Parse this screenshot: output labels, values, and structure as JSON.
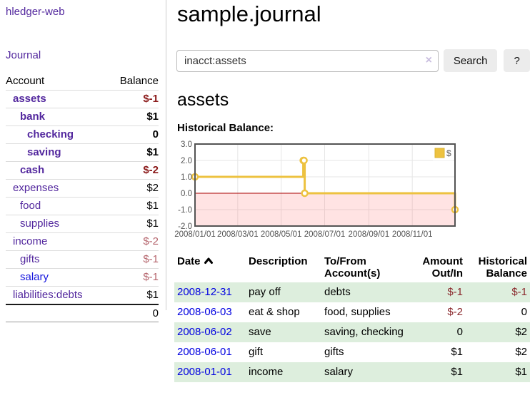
{
  "app": {
    "title": "hledger-web"
  },
  "sidebar": {
    "nav": [
      {
        "label": "Journal"
      }
    ],
    "accounts_table": {
      "headers": [
        "Account",
        "Balance"
      ],
      "rows": [
        {
          "name": "assets",
          "indent": 1,
          "bold": true,
          "balance": "$-1"
        },
        {
          "name": "bank",
          "indent": 2,
          "bold": true,
          "balance": "$1"
        },
        {
          "name": "checking",
          "indent": 3,
          "bold": true,
          "balance": "0"
        },
        {
          "name": "saving",
          "indent": 3,
          "bold": true,
          "balance": "$1"
        },
        {
          "name": "cash",
          "indent": 2,
          "bold": true,
          "balance": "$-2"
        },
        {
          "name": "expenses",
          "indent": 1,
          "bold": false,
          "balance": "$2"
        },
        {
          "name": "food",
          "indent": 2,
          "bold": false,
          "balance": "$1"
        },
        {
          "name": "supplies",
          "indent": 2,
          "bold": false,
          "balance": "$1"
        },
        {
          "name": "income",
          "indent": 1,
          "bold": false,
          "balance": "$-2"
        },
        {
          "name": "gifts",
          "indent": 2,
          "bold": false,
          "balance": "$-1"
        },
        {
          "name": "salary",
          "indent": 2,
          "bold": false,
          "balance": "$-1",
          "unvisited": true
        },
        {
          "name": "liabilities:debts",
          "indent": 1,
          "bold": false,
          "balance": "$1"
        }
      ],
      "total": "0"
    }
  },
  "header": {
    "title": "sample.journal"
  },
  "search": {
    "value": "inacct:assets",
    "clear_icon": "×",
    "button_label": "Search",
    "help_label": "?"
  },
  "account_page": {
    "title": "assets",
    "chart_label": "Historical Balance:"
  },
  "chart_data": {
    "type": "line",
    "title": "Historical Balance of assets",
    "step": true,
    "series": [
      {
        "name": "$",
        "color": "#edc240",
        "points": [
          {
            "date": "2008-01-01",
            "value": 1
          },
          {
            "date": "2008-06-01",
            "value": 2
          },
          {
            "date": "2008-06-02",
            "value": 2
          },
          {
            "date": "2008-06-03",
            "value": 0
          },
          {
            "date": "2008-12-31",
            "value": -1
          }
        ]
      }
    ],
    "xlim": [
      "2008-01-01",
      "2008-12-31"
    ],
    "ylim": [
      -2,
      3
    ],
    "y_ticks": [
      "3.0",
      "2.0",
      "1.0",
      "0.0",
      "-1.0",
      "-2.0"
    ],
    "x_ticks": [
      {
        "date": "2008-01-01",
        "label": "2008/01/01"
      },
      {
        "date": "2008-03-01",
        "label": "2008/03/01"
      },
      {
        "date": "2008-05-01",
        "label": "2008/05/01"
      },
      {
        "date": "2008-07-01",
        "label": "2008/07/01"
      },
      {
        "date": "2008-09-01",
        "label": "2008/09/01"
      },
      {
        "date": "2008-11-01",
        "label": "2008/11/01"
      }
    ],
    "grid": true,
    "legend": {
      "position": "top-right",
      "label": "$"
    },
    "colors": {
      "line": "#edc240",
      "marker_fill": "#ffffff",
      "zero_line": "#aa0000",
      "negative_region_fill": "rgba(255,80,80,0.16)",
      "gridline": "#e6e6e6",
      "plot_border": "#545454",
      "tick_text": "#545454"
    }
  },
  "register_table": {
    "headers": [
      {
        "label": "Date",
        "sorted": "asc"
      },
      {
        "label": "Description"
      },
      {
        "label": "To/From Account(s)"
      },
      {
        "label": "Amount Out/In"
      },
      {
        "label": "Historical Balance"
      }
    ],
    "rows": [
      {
        "date": "2008-12-31",
        "description": "pay off",
        "accounts": "debts",
        "amount": "$-1",
        "balance": "$-1"
      },
      {
        "date": "2008-06-03",
        "description": "eat & shop",
        "accounts": "food, supplies",
        "amount": "$-2",
        "balance": "0"
      },
      {
        "date": "2008-06-02",
        "description": "save",
        "accounts": "saving, checking",
        "amount": "0",
        "balance": "$2"
      },
      {
        "date": "2008-06-01",
        "description": "gift",
        "accounts": "gifts",
        "amount": "$1",
        "balance": "$2"
      },
      {
        "date": "2008-01-01",
        "description": "income",
        "accounts": "salary",
        "amount": "$1",
        "balance": "$1"
      }
    ]
  },
  "colors": {
    "link_purple": "#53289e",
    "link_blue": "#0000e0",
    "negative_strong": "#8b1a1a",
    "negative_soft": "#b4636b",
    "negative_table": "#8b2a2e",
    "row_shade_green": "#ddeedd"
  }
}
